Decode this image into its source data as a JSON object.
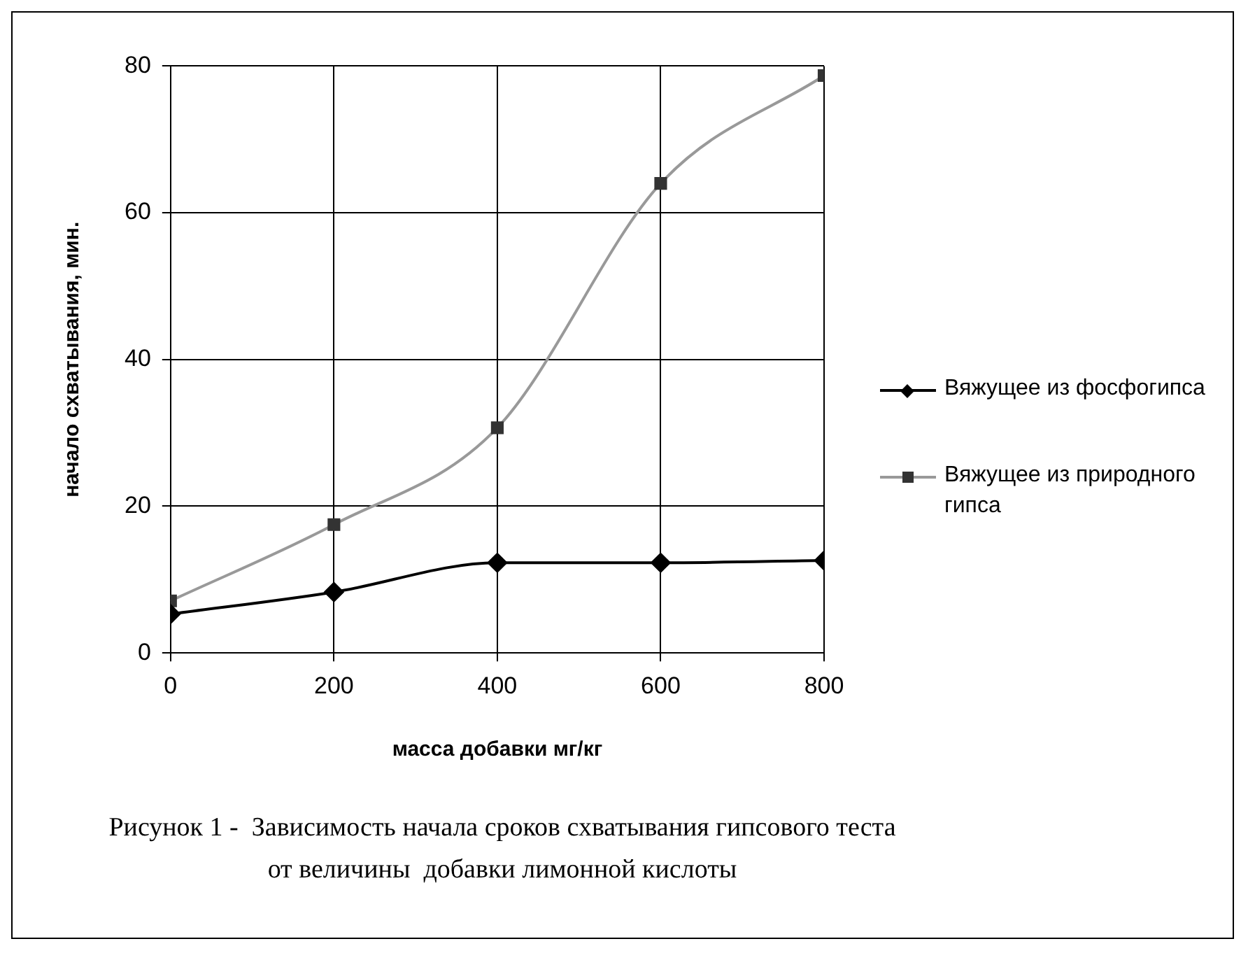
{
  "chart_data": {
    "type": "line",
    "xlabel": "масса добавки мг/кг",
    "ylabel": "начало схватывания, мин.",
    "x": [
      0,
      200,
      400,
      600,
      800
    ],
    "series": [
      {
        "name": "Вяжущее из фосфогипса",
        "color": "#000000",
        "marker": "diamond",
        "values": [
          5.3,
          8.3,
          12.3,
          12.3,
          12.6
        ]
      },
      {
        "name": "Вяжущее из природного гипса",
        "color": "#999999",
        "marker": "square",
        "values": [
          7.1,
          17.5,
          30.7,
          64.0,
          78.7
        ]
      }
    ],
    "xlim": [
      0,
      800
    ],
    "xticks": [
      0,
      200,
      400,
      600,
      800
    ],
    "ylim": [
      0,
      80
    ],
    "yticks": [
      0,
      20,
      40,
      60,
      80
    ],
    "grid": true,
    "legend": "right",
    "annotations": [
      "Рисунок 1 -  Зависимость начала сроков схватывания гипсового теста от величины  добавки лимонной кислоты"
    ]
  }
}
